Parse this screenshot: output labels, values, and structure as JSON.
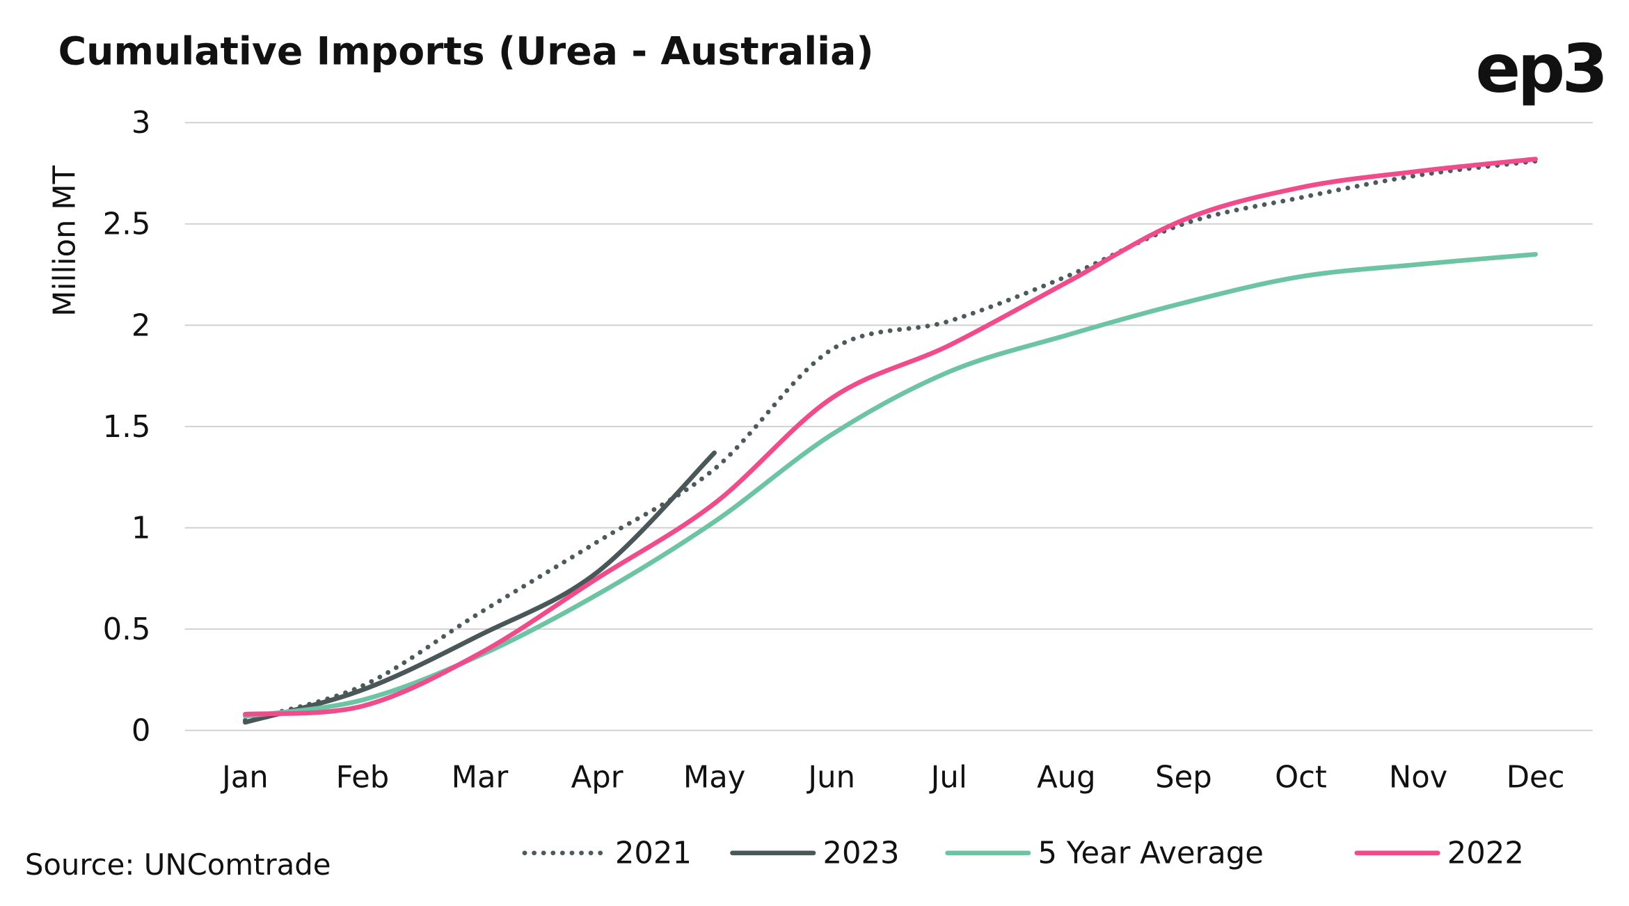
{
  "chart_data": {
    "type": "line",
    "title": "Cumulative Imports (Urea - Australia)",
    "logo": "ep3",
    "source": "Source: UNComtrade",
    "ylabel": "Million MT",
    "categories": [
      "Jan",
      "Feb",
      "Mar",
      "Apr",
      "May",
      "Jun",
      "Jul",
      "Aug",
      "Sep",
      "Oct",
      "Nov",
      "Dec"
    ],
    "ylim": [
      0,
      3
    ],
    "yticks": [
      0,
      0.5,
      1,
      1.5,
      2,
      2.5,
      3
    ],
    "grid": true,
    "legend": "bottom",
    "series": [
      {
        "name": "2021",
        "color": "#4d5a5b",
        "style": "dotted",
        "values": [
          0.05,
          0.22,
          0.58,
          0.93,
          1.29,
          1.88,
          2.02,
          2.24,
          2.5,
          2.63,
          2.74,
          2.81
        ]
      },
      {
        "name": "2023",
        "color": "#4a5759",
        "style": "solid",
        "values": [
          0.04,
          0.2,
          0.47,
          0.78,
          1.37,
          null,
          null,
          null,
          null,
          null,
          null,
          null
        ]
      },
      {
        "name": "5 Year Average",
        "color": "#6cc4a4",
        "style": "solid",
        "values": [
          0.07,
          0.15,
          0.37,
          0.67,
          1.03,
          1.46,
          1.77,
          1.95,
          2.11,
          2.24,
          2.3,
          2.35
        ]
      },
      {
        "name": "2022",
        "color": "#f04c8c",
        "style": "solid",
        "values": [
          0.08,
          0.12,
          0.38,
          0.75,
          1.12,
          1.64,
          1.9,
          2.21,
          2.52,
          2.68,
          2.76,
          2.82
        ]
      }
    ]
  }
}
